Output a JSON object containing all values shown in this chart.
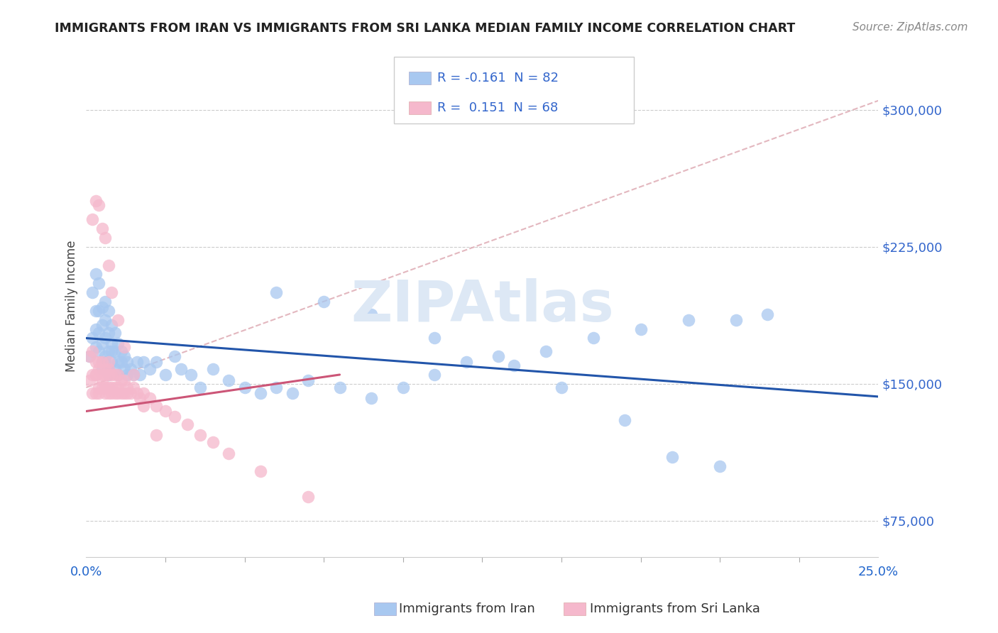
{
  "title": "IMMIGRANTS FROM IRAN VS IMMIGRANTS FROM SRI LANKA MEDIAN FAMILY INCOME CORRELATION CHART",
  "source": "Source: ZipAtlas.com",
  "ylabel": "Median Family Income",
  "yticks": [
    75000,
    150000,
    225000,
    300000
  ],
  "ytick_labels": [
    "$75,000",
    "$150,000",
    "$225,000",
    "$300,000"
  ],
  "xlim": [
    0.0,
    0.25
  ],
  "ylim": [
    55000,
    330000
  ],
  "iran_color": "#a8c8f0",
  "srilanka_color": "#f5b8cc",
  "iran_line_color": "#2255aa",
  "srilanka_line_color": "#cc5577",
  "dash_line_color": "#e0b0b8",
  "watermark_color": "#dde8f5",
  "iran_r": "-0.161",
  "iran_n": "82",
  "srilanka_r": "0.151",
  "srilanka_n": "68",
  "iran_x": [
    0.001,
    0.002,
    0.002,
    0.003,
    0.003,
    0.003,
    0.003,
    0.004,
    0.004,
    0.004,
    0.004,
    0.005,
    0.005,
    0.005,
    0.005,
    0.005,
    0.006,
    0.006,
    0.006,
    0.006,
    0.006,
    0.007,
    0.007,
    0.007,
    0.007,
    0.007,
    0.008,
    0.008,
    0.008,
    0.008,
    0.009,
    0.009,
    0.009,
    0.01,
    0.01,
    0.01,
    0.011,
    0.011,
    0.012,
    0.012,
    0.013,
    0.013,
    0.014,
    0.015,
    0.016,
    0.017,
    0.018,
    0.02,
    0.022,
    0.025,
    0.028,
    0.03,
    0.033,
    0.036,
    0.04,
    0.045,
    0.05,
    0.055,
    0.06,
    0.065,
    0.07,
    0.08,
    0.09,
    0.1,
    0.11,
    0.12,
    0.13,
    0.145,
    0.16,
    0.175,
    0.19,
    0.205,
    0.215,
    0.06,
    0.075,
    0.09,
    0.11,
    0.135,
    0.15,
    0.17,
    0.185,
    0.2
  ],
  "iran_y": [
    165000,
    175000,
    200000,
    170000,
    180000,
    190000,
    210000,
    168000,
    178000,
    190000,
    205000,
    162000,
    172000,
    182000,
    192000,
    158000,
    165000,
    175000,
    185000,
    195000,
    162000,
    158000,
    168000,
    178000,
    190000,
    155000,
    162000,
    172000,
    182000,
    168000,
    158000,
    168000,
    178000,
    162000,
    172000,
    155000,
    162000,
    168000,
    158000,
    165000,
    155000,
    162000,
    158000,
    155000,
    162000,
    155000,
    162000,
    158000,
    162000,
    155000,
    165000,
    158000,
    155000,
    148000,
    158000,
    152000,
    148000,
    145000,
    148000,
    145000,
    152000,
    148000,
    142000,
    148000,
    155000,
    162000,
    165000,
    168000,
    175000,
    180000,
    185000,
    185000,
    188000,
    200000,
    195000,
    188000,
    175000,
    160000,
    148000,
    130000,
    110000,
    105000
  ],
  "srilanka_x": [
    0.001,
    0.001,
    0.002,
    0.002,
    0.002,
    0.003,
    0.003,
    0.003,
    0.003,
    0.004,
    0.004,
    0.004,
    0.004,
    0.005,
    0.005,
    0.005,
    0.005,
    0.006,
    0.006,
    0.006,
    0.006,
    0.007,
    0.007,
    0.007,
    0.007,
    0.007,
    0.008,
    0.008,
    0.008,
    0.009,
    0.009,
    0.009,
    0.01,
    0.01,
    0.01,
    0.011,
    0.011,
    0.012,
    0.012,
    0.013,
    0.013,
    0.014,
    0.015,
    0.016,
    0.017,
    0.018,
    0.02,
    0.022,
    0.025,
    0.028,
    0.032,
    0.036,
    0.04,
    0.045,
    0.055,
    0.07,
    0.002,
    0.003,
    0.004,
    0.005,
    0.006,
    0.007,
    0.008,
    0.01,
    0.012,
    0.015,
    0.018,
    0.022
  ],
  "srilanka_y": [
    152000,
    165000,
    155000,
    168000,
    145000,
    155000,
    162000,
    145000,
    155000,
    148000,
    158000,
    162000,
    145000,
    152000,
    162000,
    148000,
    155000,
    148000,
    158000,
    145000,
    155000,
    148000,
    158000,
    145000,
    155000,
    162000,
    145000,
    155000,
    148000,
    145000,
    155000,
    148000,
    145000,
    155000,
    148000,
    145000,
    152000,
    145000,
    152000,
    145000,
    148000,
    145000,
    148000,
    145000,
    142000,
    145000,
    142000,
    138000,
    135000,
    132000,
    128000,
    122000,
    118000,
    112000,
    102000,
    88000,
    240000,
    250000,
    248000,
    235000,
    230000,
    215000,
    200000,
    185000,
    170000,
    155000,
    138000,
    122000
  ],
  "iran_line_x0": 0.0,
  "iran_line_y0": 175000,
  "iran_line_x1": 0.25,
  "iran_line_y1": 143000,
  "srilanka_line_x0": 0.0,
  "srilanka_line_y0": 135000,
  "srilanka_line_x1": 0.08,
  "srilanka_line_y1": 155000,
  "dash_line_x0": 0.0,
  "dash_line_y0": 148000,
  "dash_line_x1": 0.25,
  "dash_line_y1": 305000
}
